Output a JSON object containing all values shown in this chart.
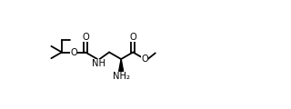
{
  "bg_color": "#ffffff",
  "line_color": "#000000",
  "lw": 1.3,
  "figsize": [
    3.2,
    1.2
  ],
  "dpi": 100,
  "xlim": [
    0,
    10
  ],
  "ylim": [
    0,
    3.75
  ]
}
